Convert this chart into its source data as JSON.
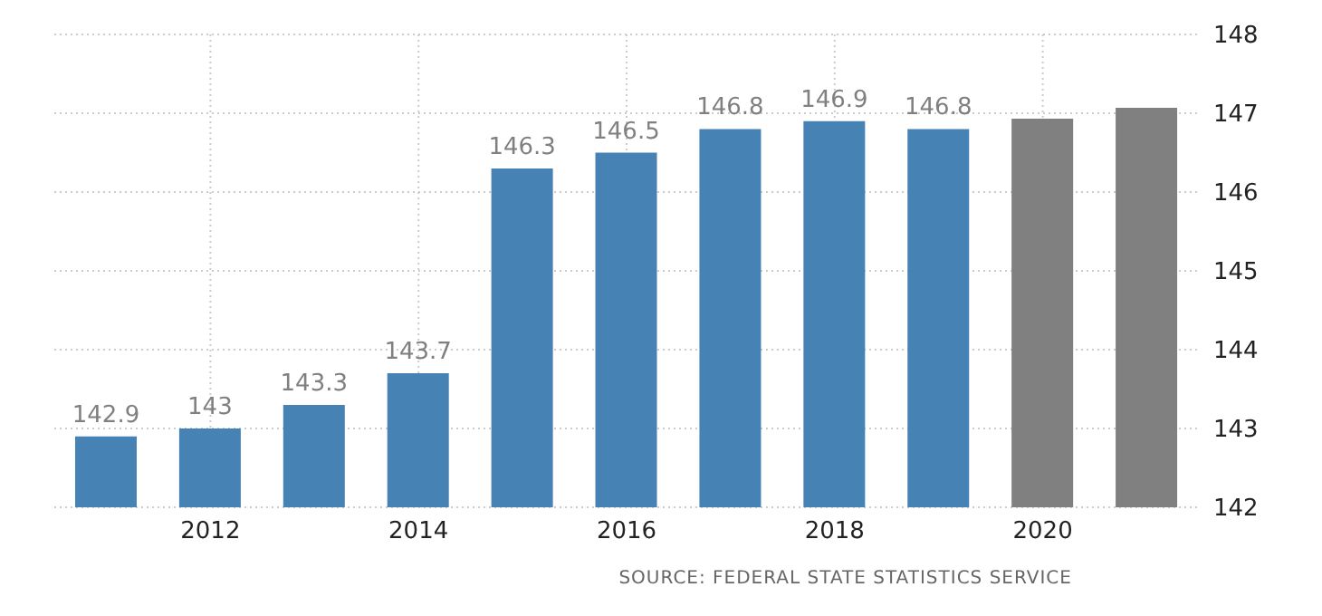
{
  "chart_data": {
    "type": "bar",
    "categories": [
      null,
      "2012",
      null,
      "2014",
      null,
      "2016",
      null,
      "2018",
      null,
      "2020",
      null
    ],
    "values": [
      142.9,
      143,
      143.3,
      143.7,
      146.3,
      146.5,
      146.8,
      146.9,
      146.8,
      146.93,
      147.07
    ],
    "colors": [
      "#4682b4",
      "#4682b4",
      "#4682b4",
      "#4682b4",
      "#4682b4",
      "#4682b4",
      "#4682b4",
      "#4682b4",
      "#4682b4",
      "#808080",
      "#808080"
    ],
    "value_labels": [
      "142.9",
      "143",
      "143.3",
      "143.7",
      "146.3",
      "146.5",
      "146.8",
      "146.9",
      "146.8",
      null,
      null
    ],
    "ylim": [
      142,
      148
    ],
    "yticks": [
      142,
      143,
      144,
      145,
      146,
      147,
      148
    ],
    "grid": true,
    "annotations": [
      "SOURCE: FEDERAL STATE STATISTICS SERVICE"
    ]
  }
}
